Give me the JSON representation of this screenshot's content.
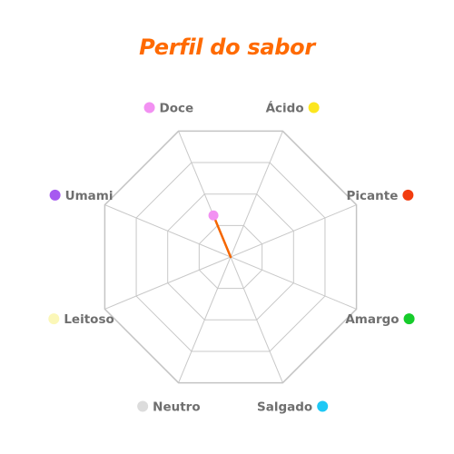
{
  "chart_data": {
    "type": "radar",
    "title": "Perfil do sabor",
    "title_color": "#ff6a00",
    "axes": [
      {
        "label": "Doce",
        "color": "#f291f2",
        "marker": "left"
      },
      {
        "label": "Ácido",
        "color": "#fce61f",
        "marker": "right"
      },
      {
        "label": "Picante",
        "color": "#f23c0f",
        "marker": "right"
      },
      {
        "label": "Amargo",
        "color": "#16cc2b",
        "marker": "right"
      },
      {
        "label": "Salgado",
        "color": "#1ec8f5",
        "marker": "right"
      },
      {
        "label": "Neutro",
        "color": "#dcdcdc",
        "marker": "left"
      },
      {
        "label": "Leitoso",
        "color": "#fbf7b8",
        "marker": "left"
      },
      {
        "label": "Umami",
        "color": "#a65af0",
        "marker": "left"
      }
    ],
    "series": [
      {
        "values": [
          0.33,
          0,
          0,
          0,
          0,
          0,
          0,
          0
        ],
        "color": "#f56600",
        "point_color": "#f291f2"
      }
    ],
    "rlim": [
      0,
      1
    ],
    "grid_levels": 4,
    "grid_shape": "octagon",
    "grid_color": "#c8c8c8"
  }
}
